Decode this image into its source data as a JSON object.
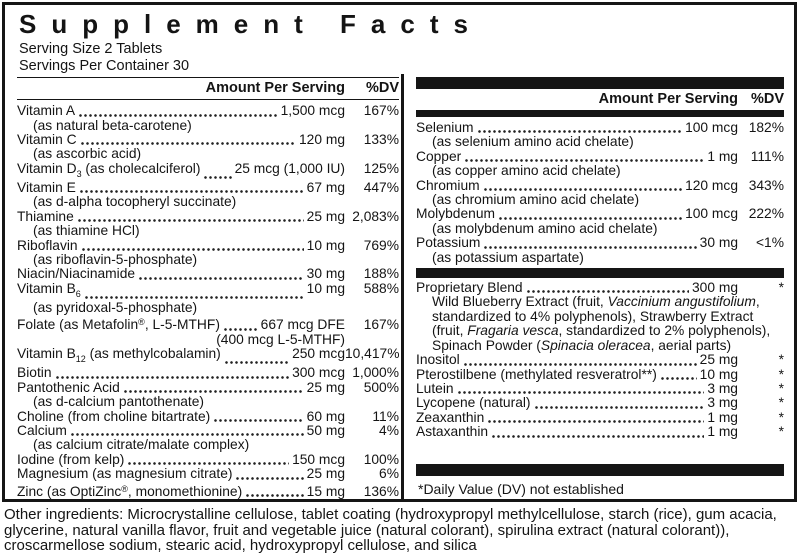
{
  "title": "Supplement Facts",
  "serving": {
    "size": "Serving Size 2 Tablets",
    "per_container": "Servings Per Container 30"
  },
  "table_headers": {
    "amount": "Amount Per Serving",
    "dv": "%DV"
  },
  "left_column": {
    "rows": [
      {
        "type": "main",
        "name": "Vitamin A",
        "amount": "1,500 mcg",
        "dv": "167%"
      },
      {
        "type": "sub",
        "text": "(as natural beta-carotene)"
      },
      {
        "type": "main",
        "name": "Vitamin C",
        "amount": "120 mg",
        "dv": "133%"
      },
      {
        "type": "sub",
        "text": "(as ascorbic acid)"
      },
      {
        "type": "main",
        "name": "Vitamin D{3} (as cholecalciferol)",
        "amount": "25 mcg (1,000 IU)",
        "dv": "125%"
      },
      {
        "type": "main",
        "name": "Vitamin E",
        "amount": "67 mg",
        "dv": "447%"
      },
      {
        "type": "sub",
        "text": "(as d-alpha tocopheryl succinate)"
      },
      {
        "type": "main",
        "name": "Thiamine",
        "amount": "25 mg",
        "dv": "2,083%"
      },
      {
        "type": "sub",
        "text": "(as thiamine HCl)"
      },
      {
        "type": "main",
        "name": "Riboflavin",
        "amount": "10 mg",
        "dv": "769%"
      },
      {
        "type": "sub",
        "text": "(as riboflavin-5-phosphate)"
      },
      {
        "type": "main",
        "name": "Niacin/Niacinamide",
        "amount": "30 mg",
        "dv": "188%"
      },
      {
        "type": "main",
        "name": "Vitamin B{6}",
        "amount": "10 mg",
        "dv": "588%"
      },
      {
        "type": "sub",
        "text": "(as pyridoxal-5-phosphate)"
      },
      {
        "type": "main",
        "name": "Folate (as Metafolin®, L-5-MTHF)",
        "amount": "667 mcg DFE",
        "dv": "167%"
      },
      {
        "type": "cont",
        "text": "(400 mcg L-5-MTHF)"
      },
      {
        "type": "main",
        "name": "Vitamin B{12} (as methylcobalamin)",
        "amount": "250 mcg",
        "dv": "10,417%"
      },
      {
        "type": "main",
        "name": "Biotin",
        "amount": "300 mcg",
        "dv": "1,000%"
      },
      {
        "type": "main",
        "name": "Pantothenic Acid",
        "amount": "25 mg",
        "dv": "500%"
      },
      {
        "type": "sub",
        "text": "(as d-calcium pantothenate)"
      },
      {
        "type": "main",
        "name": "Choline (from choline bitartrate)",
        "amount": "60 mg",
        "dv": "11%"
      },
      {
        "type": "main",
        "name": "Calcium",
        "amount": "50 mg",
        "dv": "4%"
      },
      {
        "type": "sub",
        "text": "(as calcium citrate/malate complex)"
      },
      {
        "type": "main",
        "name": "Iodine (from kelp)",
        "amount": "150 mcg",
        "dv": "100%"
      },
      {
        "type": "main",
        "name": "Magnesium (as magnesium citrate)",
        "amount": "25 mg",
        "dv": "6%"
      },
      {
        "type": "main",
        "name": "Zinc (as OptiZinc®, monomethionine)",
        "amount": "15 mg",
        "dv": "136%"
      }
    ]
  },
  "right_column": {
    "mineral_rows": [
      {
        "type": "main",
        "name": "Selenium",
        "amount": "100 mcg",
        "dv": "182%"
      },
      {
        "type": "sub",
        "text": "(as selenium amino acid chelate)"
      },
      {
        "type": "main",
        "name": "Copper",
        "amount": "1 mg",
        "dv": "111%"
      },
      {
        "type": "sub",
        "text": "(as copper amino acid chelate)"
      },
      {
        "type": "main",
        "name": "Chromium",
        "amount": "120 mcg",
        "dv": "343%"
      },
      {
        "type": "sub",
        "text": "(as chromium amino acid chelate)"
      },
      {
        "type": "main",
        "name": "Molybdenum",
        "amount": "100 mcg",
        "dv": "222%"
      },
      {
        "type": "sub",
        "text": "(as molybdenum amino acid chelate)"
      },
      {
        "type": "main",
        "name": "Potassium",
        "amount": "30 mg",
        "dv": "<1%"
      },
      {
        "type": "sub",
        "text": "(as potassium aspartate)"
      }
    ],
    "blend_rows": [
      {
        "type": "main",
        "name": "Proprietary Blend",
        "amount": "300 mg",
        "dv": "*"
      },
      {
        "type": "desc",
        "text": "Wild Blueberry Extract (fruit, _Vaccinium angustifolium_, standardized to 4% polyphenols), Strawberry Extract (fruit, _Fragaria vesca_, standardized to 2% polyphenols), Spinach Powder (_Spinacia oleracea_, aerial parts)"
      },
      {
        "type": "main",
        "name": "Inositol",
        "amount": "25 mg",
        "dv": "*"
      },
      {
        "type": "main",
        "name": "Pterostilbene (methylated resveratrol**)",
        "amount": "10 mg",
        "dv": "*"
      },
      {
        "type": "main",
        "name": "Lutein",
        "amount": "3 mg",
        "dv": "*"
      },
      {
        "type": "main",
        "name": "Lycopene (natural)",
        "amount": "3 mg",
        "dv": "*"
      },
      {
        "type": "main",
        "name": "Zeaxanthin",
        "amount": "1 mg",
        "dv": "*"
      },
      {
        "type": "main",
        "name": "Astaxanthin",
        "amount": "1 mg",
        "dv": "*"
      }
    ],
    "footnote": "*Daily Value (DV) not established"
  },
  "other_ingredients": "Other ingredients: Microcrystalline cellulose, tablet coating (hydroxypropyl methylcellulose, starch (rice), gum acacia, glycerine, natural vanilla flavor, fruit and vegetable juice (natural colorant), spirulina extract (natural colorant)), croscarmellose sodium, stearic acid, hydroxypropyl cellulose, and silica"
}
